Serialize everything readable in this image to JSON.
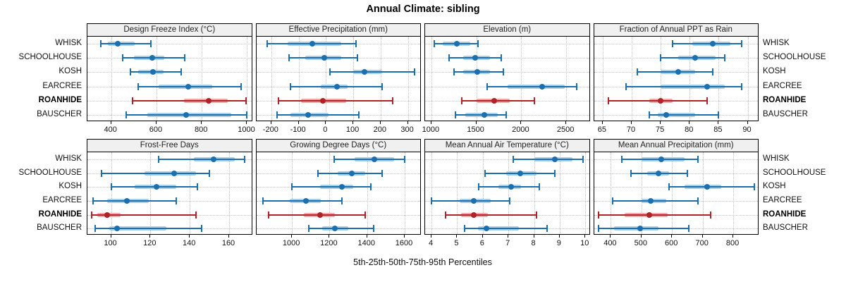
{
  "title": "Annual Climate: sibling",
  "xlabel": "5th-25th-50th-75th-95th Percentiles",
  "stations": [
    "WHISK",
    "SCHOOLHOUSE",
    "KOSH",
    "EARCREE",
    "ROANHIDE",
    "BAUSCHER"
  ],
  "highlight_station": "ROANHIDE",
  "colors": {
    "blue_dark": "#1b6fae",
    "blue_light": "#a9cfe7",
    "red_dark": "#b02226",
    "red_light": "#f2a8a8",
    "grid": "#c3c3c3",
    "header_bg": "#f0f0f0",
    "border": "#000000"
  },
  "chart_data": {
    "type": "dotplot-percentile-ranges",
    "percentile_labels": [
      "5th",
      "25th",
      "50th",
      "75th",
      "95th"
    ],
    "legend_position": "none",
    "grid": true,
    "panels": [
      {
        "title": "Design Freeze Index (°C)",
        "xlim": [
          295,
          1025
        ],
        "ticks": [
          400,
          600,
          800,
          1000
        ],
        "series": [
          {
            "name": "WHISK",
            "values": [
              355,
              385,
              430,
              505,
              575
            ]
          },
          {
            "name": "SCHOOLHOUSE",
            "values": [
              450,
              500,
              580,
              635,
              725
            ]
          },
          {
            "name": "KOSH",
            "values": [
              485,
              520,
              585,
              630,
              710
            ]
          },
          {
            "name": "EARCREE",
            "values": [
              520,
              610,
              740,
              845,
              975
            ]
          },
          {
            "name": "ROANHIDE",
            "values": [
              495,
              720,
              830,
              915,
              995
            ]
          },
          {
            "name": "BAUSCHER",
            "values": [
              465,
              560,
              730,
              930,
              1000
            ]
          }
        ]
      },
      {
        "title": "Effective Precipitation (mm)",
        "xlim": [
          -255,
          350
        ],
        "ticks": [
          -200,
          -100,
          0,
          100,
          200,
          300
        ],
        "series": [
          {
            "name": "WHISK",
            "values": [
              -215,
              -140,
              -50,
              55,
              110
            ]
          },
          {
            "name": "SCHOOLHOUSE",
            "values": [
              -135,
              -75,
              -5,
              55,
              115
            ]
          },
          {
            "name": "KOSH",
            "values": [
              15,
              100,
              140,
              205,
              325
            ]
          },
          {
            "name": "EARCREE",
            "values": [
              -130,
              -20,
              40,
              80,
              205
            ]
          },
          {
            "name": "ROANHIDE",
            "values": [
              -175,
              -90,
              -10,
              75,
              245
            ]
          },
          {
            "name": "BAUSCHER",
            "values": [
              -180,
              -130,
              -65,
              10,
              120
            ]
          }
        ]
      },
      {
        "title": "Elevation (m)",
        "xlim": [
          930,
          2770
        ],
        "ticks": [
          1000,
          1500,
          2000,
          2500
        ],
        "series": [
          {
            "name": "WHISK",
            "values": [
              1030,
              1130,
              1280,
              1430,
              1515
            ]
          },
          {
            "name": "SCHOOLHOUSE",
            "values": [
              1200,
              1350,
              1490,
              1650,
              1780
            ]
          },
          {
            "name": "KOSH",
            "values": [
              1250,
              1350,
              1510,
              1650,
              1800
            ]
          },
          {
            "name": "EARCREE",
            "values": [
              1620,
              1850,
              2230,
              2480,
              2620
            ]
          },
          {
            "name": "ROANHIDE",
            "values": [
              1340,
              1500,
              1700,
              1870,
              2150
            ]
          },
          {
            "name": "BAUSCHER",
            "values": [
              1270,
              1380,
              1590,
              1740,
              1830
            ]
          }
        ]
      },
      {
        "title": "Fraction of Annual PPT as Rain",
        "xlim": [
          63.5,
          92
        ],
        "ticks": [
          65,
          70,
          75,
          80,
          85,
          90
        ],
        "series": [
          {
            "name": "WHISK",
            "values": [
              77,
              80.5,
              84,
              87,
              89
            ]
          },
          {
            "name": "SCHOOLHOUSE",
            "values": [
              75,
              78,
              81,
              84.5,
              86
            ]
          },
          {
            "name": "KOSH",
            "values": [
              71,
              75,
              78,
              81,
              84
            ]
          },
          {
            "name": "EARCREE",
            "values": [
              69,
              75,
              83,
              86,
              89
            ]
          },
          {
            "name": "ROANHIDE",
            "values": [
              66,
              73,
              75,
              77,
              83
            ]
          },
          {
            "name": "BAUSCHER",
            "values": [
              73,
              74.5,
              76,
              81,
              85
            ]
          }
        ]
      },
      {
        "title": "Frost-Free Days",
        "xlim": [
          88,
          172
        ],
        "ticks": [
          100,
          120,
          140,
          160
        ],
        "series": [
          {
            "name": "WHISK",
            "values": [
              124,
              142,
              152,
              163,
              168
            ]
          },
          {
            "name": "SCHOOLHOUSE",
            "values": [
              95,
              117,
              132,
              143,
              150
            ]
          },
          {
            "name": "KOSH",
            "values": [
              100,
              112,
              123,
              133,
              144
            ]
          },
          {
            "name": "EARCREE",
            "values": [
              91,
              98,
              108,
              119,
              133
            ]
          },
          {
            "name": "ROANHIDE",
            "values": [
              90,
              93,
              98,
              105,
              143
            ]
          },
          {
            "name": "BAUSCHER",
            "values": [
              92,
              99,
              103,
              128,
              146
            ]
          }
        ]
      },
      {
        "title": "Growing Degree Days (°C)",
        "xlim": [
          810,
          1690
        ],
        "ticks": [
          1000,
          1200,
          1400,
          1600
        ],
        "series": [
          {
            "name": "WHISK",
            "values": [
              1225,
              1335,
              1440,
              1545,
              1600
            ]
          },
          {
            "name": "SCHOOLHOUSE",
            "values": [
              1140,
              1245,
              1320,
              1390,
              1480
            ]
          },
          {
            "name": "KOSH",
            "values": [
              1000,
              1150,
              1265,
              1325,
              1420
            ]
          },
          {
            "name": "EARCREE",
            "values": [
              845,
              990,
              1075,
              1155,
              1265
            ]
          },
          {
            "name": "ROANHIDE",
            "values": [
              875,
              1065,
              1150,
              1230,
              1390
            ]
          },
          {
            "name": "BAUSCHER",
            "values": [
              1090,
              1160,
              1230,
              1300,
              1435
            ]
          }
        ]
      },
      {
        "title": "Mean Annual Air Temperature (°C)",
        "xlim": [
          3.75,
          10.2
        ],
        "ticks": [
          4,
          5,
          6,
          7,
          8,
          9,
          10
        ],
        "series": [
          {
            "name": "WHISK",
            "values": [
              7.2,
              8.0,
              8.8,
              9.5,
              9.9
            ]
          },
          {
            "name": "SCHOOLHOUSE",
            "values": [
              6.1,
              6.9,
              7.45,
              8.1,
              8.8
            ]
          },
          {
            "name": "KOSH",
            "values": [
              5.85,
              6.6,
              7.1,
              7.5,
              8.2
            ]
          },
          {
            "name": "EARCREE",
            "values": [
              4.0,
              5.1,
              5.65,
              6.3,
              7.05
            ]
          },
          {
            "name": "ROANHIDE",
            "values": [
              4.55,
              5.15,
              5.65,
              6.2,
              8.1
            ]
          },
          {
            "name": "BAUSCHER",
            "values": [
              5.3,
              5.8,
              6.15,
              7.4,
              8.5
            ]
          }
        ]
      },
      {
        "title": "Mean Annual Precipitation (mm)",
        "xlim": [
          345,
          885
        ],
        "ticks": [
          400,
          500,
          600,
          700,
          800
        ],
        "series": [
          {
            "name": "WHISK",
            "values": [
              435,
              500,
              565,
              640,
              685
            ]
          },
          {
            "name": "SCHOOLHOUSE",
            "values": [
              465,
              520,
              555,
              590,
              650
            ]
          },
          {
            "name": "KOSH",
            "values": [
              590,
              640,
              715,
              760,
              870
            ]
          },
          {
            "name": "EARCREE",
            "values": [
              405,
              500,
              530,
              580,
              685
            ]
          },
          {
            "name": "ROANHIDE",
            "values": [
              360,
              445,
              525,
              585,
              725
            ]
          },
          {
            "name": "BAUSCHER",
            "values": [
              360,
              410,
              495,
              555,
              655
            ]
          }
        ]
      }
    ]
  }
}
